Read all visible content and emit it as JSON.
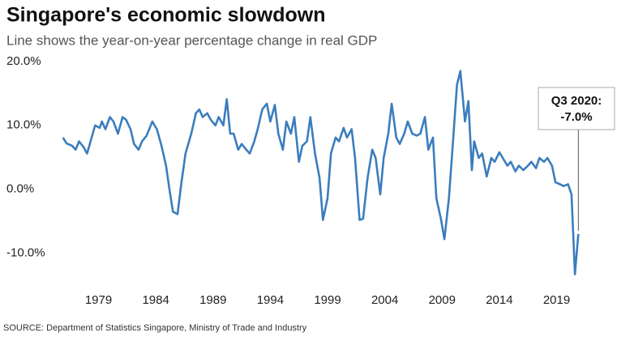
{
  "chart_data": {
    "type": "line",
    "title": "Singapore's economic slowdown",
    "subtitle": "Line shows the year-on-year percentage change in real GDP",
    "source": "SOURCE: Department of Statistics Singapore, Ministry of Trade and Industry",
    "annotation": {
      "title": "Q3 2020:",
      "value": "-7.0%"
    },
    "x": [
      1975.9,
      1976.2,
      1976.7,
      1977.0,
      1977.3,
      1977.7,
      1978.0,
      1978.4,
      1978.7,
      1979.1,
      1979.3,
      1979.6,
      1980.0,
      1980.3,
      1980.7,
      1981.1,
      1981.4,
      1981.8,
      1982.1,
      1982.5,
      1982.8,
      1983.2,
      1983.7,
      1984.1,
      1984.5,
      1984.9,
      1985.2,
      1985.5,
      1985.9,
      1986.2,
      1986.6,
      1987.1,
      1987.5,
      1987.8,
      1988.1,
      1988.5,
      1988.8,
      1989.2,
      1989.5,
      1989.9,
      1990.2,
      1990.5,
      1990.8,
      1991.2,
      1991.5,
      1991.9,
      1992.2,
      1992.6,
      1992.9,
      1993.3,
      1993.7,
      1994.0,
      1994.4,
      1994.7,
      1995.1,
      1995.4,
      1995.8,
      1996.1,
      1996.5,
      1996.8,
      1997.2,
      1997.5,
      1997.9,
      1998.3,
      1998.6,
      1999.0,
      1999.3,
      1999.7,
      2000.0,
      2000.4,
      2000.7,
      2001.1,
      2001.4,
      2001.8,
      2002.1,
      2002.5,
      2002.9,
      2003.2,
      2003.6,
      2003.9,
      2004.3,
      2004.6,
      2005.0,
      2005.3,
      2005.7,
      2006.0,
      2006.4,
      2006.8,
      2007.1,
      2007.5,
      2007.8,
      2008.2,
      2008.5,
      2008.9,
      2009.2,
      2009.6,
      2009.9,
      2010.3,
      2010.6,
      2011.0,
      2011.3,
      2011.6,
      2011.8,
      2012.2,
      2012.5,
      2012.9,
      2013.3,
      2013.6,
      2014.0,
      2014.3,
      2014.7,
      2015.0,
      2015.4,
      2015.7,
      2016.1,
      2016.5,
      2016.8,
      2017.2,
      2017.5,
      2017.9,
      2018.2,
      2018.6,
      2018.9,
      2019.3,
      2019.6,
      2020.0,
      2020.3,
      2020.6,
      2020.9
    ],
    "series": [
      {
        "color": "#3b7dbd",
        "values": [
          8.1,
          7.2,
          6.8,
          6.2,
          7.5,
          6.6,
          5.6,
          8.1,
          10.0,
          9.6,
          10.6,
          9.4,
          11.3,
          10.6,
          8.7,
          11.3,
          10.9,
          9.4,
          7.1,
          6.2,
          7.5,
          8.4,
          10.6,
          9.4,
          6.8,
          3.7,
          -0.1,
          -3.5,
          -3.9,
          0.5,
          5.6,
          8.7,
          11.9,
          12.5,
          11.3,
          11.9,
          10.9,
          10.0,
          11.3,
          10.0,
          14.1,
          8.7,
          8.7,
          6.2,
          7.1,
          6.2,
          5.6,
          7.5,
          9.4,
          12.5,
          13.4,
          10.6,
          13.2,
          8.7,
          6.2,
          10.6,
          8.7,
          11.3,
          4.3,
          6.8,
          7.5,
          11.3,
          5.6,
          1.8,
          -4.8,
          -1.4,
          5.6,
          8.1,
          7.5,
          9.6,
          8.1,
          9.4,
          4.9,
          -4.8,
          -4.6,
          1.8,
          6.2,
          4.9,
          -0.8,
          4.9,
          8.7,
          13.4,
          8.1,
          7.1,
          8.7,
          10.6,
          8.7,
          8.4,
          8.7,
          11.3,
          6.2,
          8.1,
          -1.4,
          -4.6,
          -7.8,
          -1.4,
          6.2,
          16.3,
          18.5,
          10.6,
          13.8,
          3.0,
          7.5,
          4.9,
          5.6,
          2.0,
          4.9,
          4.3,
          5.8,
          4.9,
          3.7,
          4.3,
          2.8,
          3.7,
          3.0,
          3.7,
          4.3,
          3.3,
          4.9,
          4.3,
          4.9,
          3.7,
          1.1,
          0.8,
          0.5,
          0.8,
          -0.8,
          -13.3,
          -7.0
        ]
      }
    ],
    "xlim": [
      1975,
      2023
    ],
    "xticks": [
      1979,
      1984,
      1989,
      1994,
      1999,
      2004,
      2009,
      2014,
      2019
    ],
    "ylim": [
      -15,
      21
    ],
    "yticks": [
      {
        "value": -10,
        "label": "-10.0%"
      },
      {
        "value": 0,
        "label": "0.0%"
      },
      {
        "value": 10,
        "label": "10.0%"
      },
      {
        "value": 20,
        "label": "20.0%"
      }
    ],
    "grid": false
  }
}
